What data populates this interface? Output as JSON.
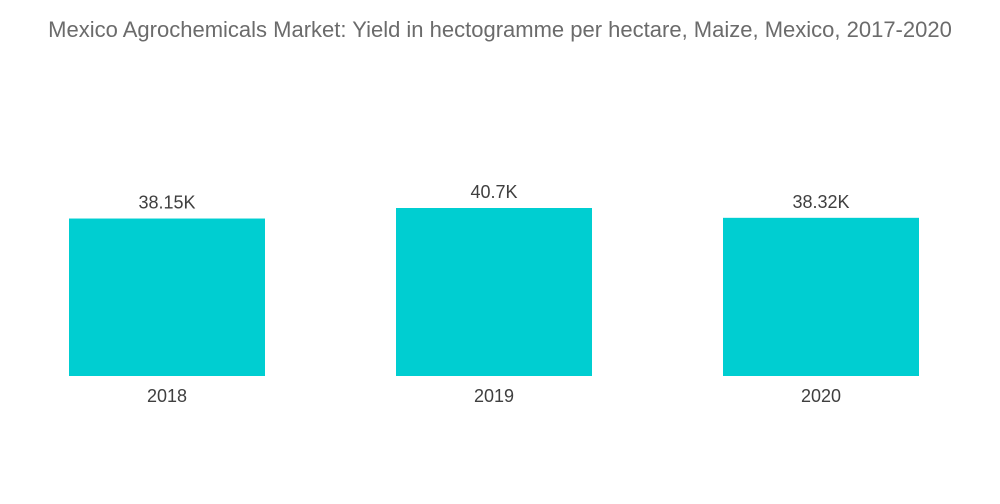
{
  "chart_data": {
    "type": "bar",
    "title": "Mexico Agrochemicals Market: Yield in hectogramme per hectare, Maize, Mexico, 2017-2020",
    "categories": [
      "2018",
      "2019",
      "2020"
    ],
    "values": [
      38150,
      40700,
      38320
    ],
    "data_labels": [
      "38.15K",
      "40.7K",
      "38.32K"
    ],
    "xlabel": "",
    "ylabel": "",
    "ylim": [
      0,
      40700
    ],
    "grid": false,
    "legend": "none",
    "bar_color": "#00CED1"
  }
}
